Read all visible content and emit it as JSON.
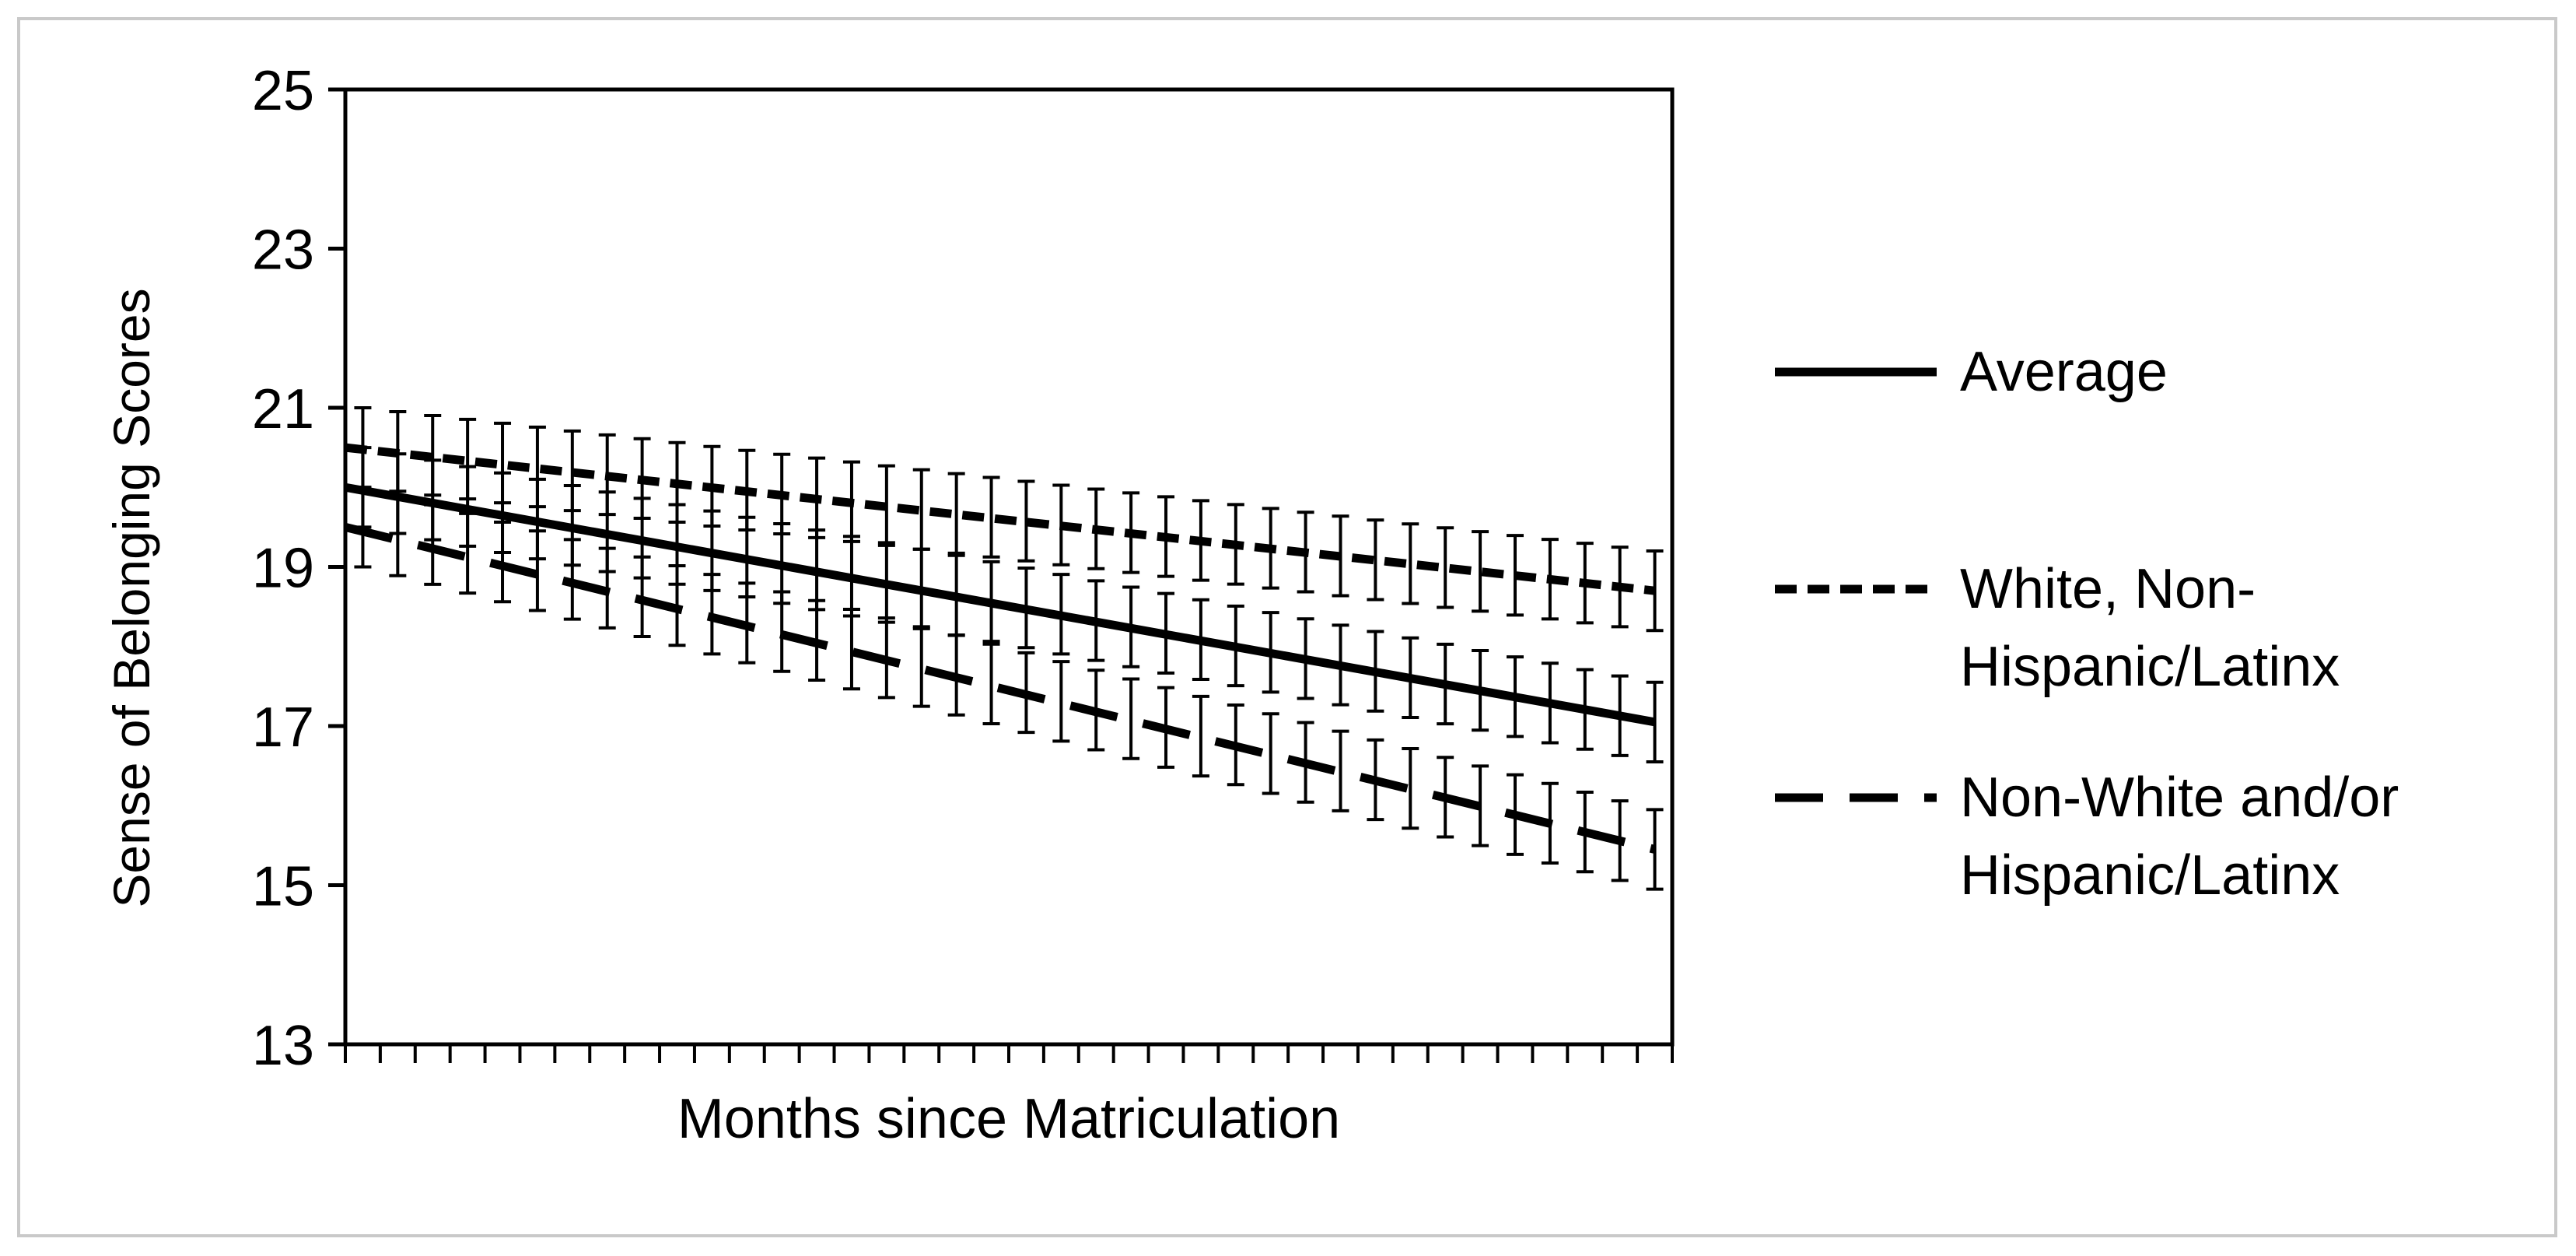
{
  "chart_data": {
    "type": "line",
    "title": "",
    "xlabel": "Months since Matriculation",
    "ylabel": "Sense of Belonging Scores",
    "ylim": [
      13,
      25
    ],
    "yticks": [
      "25",
      "23",
      "21",
      "19",
      "17",
      "15",
      "13"
    ],
    "x_points": 38,
    "error_bar_halfwidth": 0.5,
    "grid": false,
    "legend_position": "right",
    "series": [
      {
        "name": "Average",
        "dash": "solid",
        "start": 20.0,
        "end": 17.05
      },
      {
        "name": "White, Non-Hispanic/Latinx",
        "legend_lines": [
          "White, Non-",
          "Hispanic/Latinx"
        ],
        "dash": "short-dash",
        "start": 20.5,
        "end": 18.7
      },
      {
        "name": "Non-White and/or Hispanic/Latinx",
        "legend_lines": [
          "Non-White and/or",
          "Hispanic/Latinx"
        ],
        "dash": "long-dash",
        "start": 19.5,
        "end": 15.45
      }
    ]
  }
}
